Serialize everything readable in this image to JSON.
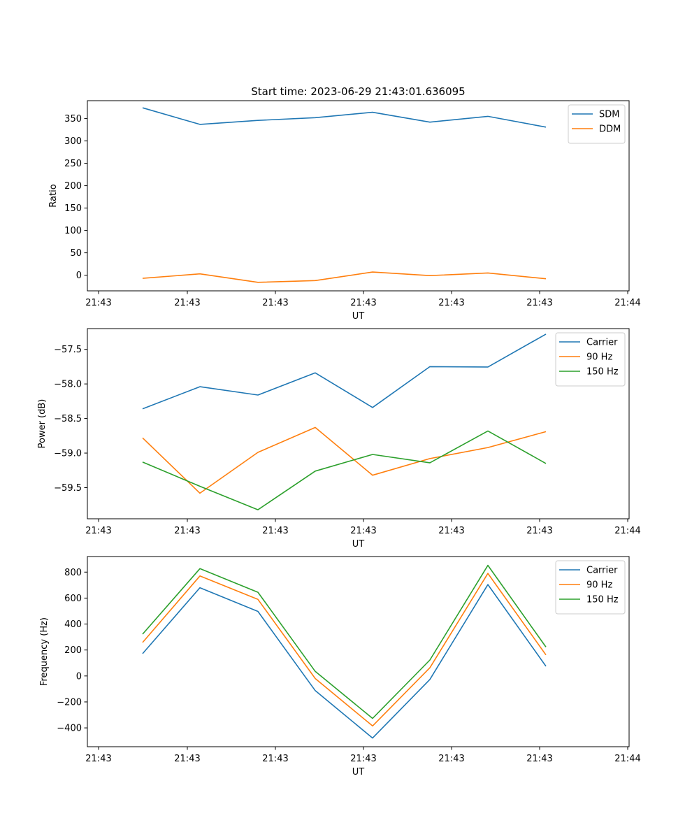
{
  "colors": {
    "blue": "#1f77b4",
    "orange": "#ff7f0e",
    "green": "#2ca02c"
  },
  "title": "Start time: 2023-06-29 21:43:01.636095",
  "chart_data": [
    {
      "type": "line",
      "xlabel": "UT",
      "ylabel": "Ratio",
      "x_tick_labels": [
        "21:43",
        "21:43",
        "21:43",
        "21:43",
        "21:43",
        "21:43",
        "21:44"
      ],
      "y_ticks": [
        0,
        50,
        100,
        150,
        200,
        250,
        300,
        350
      ],
      "ylim": [
        -35,
        390
      ],
      "grid": false,
      "legend": "top-right",
      "series": [
        {
          "name": "SDM",
          "color": "#1f77b4",
          "values": [
            374,
            337,
            346,
            352,
            364,
            342,
            355,
            331
          ]
        },
        {
          "name": "DDM",
          "color": "#ff7f0e",
          "values": [
            -7,
            3,
            -16,
            -12,
            7,
            -1,
            5,
            -8
          ]
        }
      ]
    },
    {
      "type": "line",
      "xlabel": "UT",
      "ylabel": "Power (dB)",
      "x_tick_labels": [
        "21:43",
        "21:43",
        "21:43",
        "21:43",
        "21:43",
        "21:43",
        "21:44"
      ],
      "y_ticks": [
        -59.5,
        -59.0,
        -58.5,
        -58.0,
        -57.5
      ],
      "y_tick_labels": [
        "−59.5",
        "−59.0",
        "−58.5",
        "−58.0",
        "−57.5"
      ],
      "ylim": [
        -59.95,
        -57.2
      ],
      "grid": false,
      "legend": "top-right",
      "series": [
        {
          "name": "Carrier",
          "color": "#1f77b4",
          "values": [
            -58.36,
            -58.04,
            -58.16,
            -57.84,
            -58.34,
            -57.75,
            -57.755,
            -57.28
          ]
        },
        {
          "name": "90 Hz",
          "color": "#ff7f0e",
          "values": [
            -58.78,
            -59.58,
            -58.99,
            -58.63,
            -59.32,
            -59.08,
            -58.92,
            -58.69
          ]
        },
        {
          "name": "150 Hz",
          "color": "#2ca02c",
          "values": [
            -59.13,
            -59.48,
            -59.82,
            -59.26,
            -59.02,
            -59.14,
            -58.68,
            -59.15
          ]
        }
      ]
    },
    {
      "type": "line",
      "xlabel": "UT",
      "ylabel": "Frequency (Hz)",
      "x_tick_labels": [
        "21:43",
        "21:43",
        "21:43",
        "21:43",
        "21:43",
        "21:43",
        "21:44"
      ],
      "y_ticks": [
        -400,
        -200,
        0,
        200,
        400,
        600,
        800
      ],
      "y_tick_labels": [
        "−400",
        "−200",
        "0",
        "200",
        "400",
        "600",
        "800"
      ],
      "ylim": [
        -545,
        920
      ],
      "grid": false,
      "legend": "top-right",
      "series": [
        {
          "name": "Carrier",
          "color": "#1f77b4",
          "values": [
            172,
            680,
            497,
            -113,
            -478,
            -27,
            704,
            75
          ]
        },
        {
          "name": "90 Hz",
          "color": "#ff7f0e",
          "values": [
            258,
            770,
            590,
            -20,
            -385,
            63,
            790,
            162
          ]
        },
        {
          "name": "150 Hz",
          "color": "#2ca02c",
          "values": [
            322,
            827,
            645,
            35,
            -327,
            123,
            852,
            223
          ]
        }
      ]
    }
  ]
}
